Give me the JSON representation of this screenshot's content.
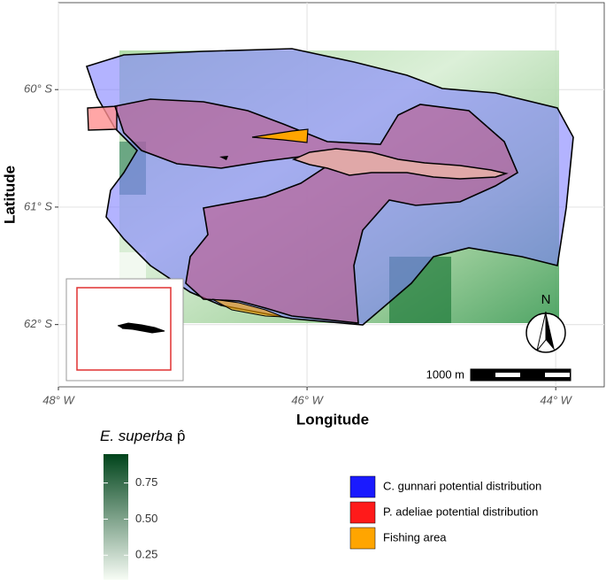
{
  "map": {
    "xaxis": {
      "title": "Longitude",
      "lim": [
        -48,
        -43.61
      ],
      "ticks": [
        {
          "value": -48,
          "label": "48° W"
        },
        {
          "value": -46,
          "label": "46° W"
        },
        {
          "value": -44,
          "label": "44° W"
        }
      ]
    },
    "yaxis": {
      "title": "Latitude",
      "lim": [
        -62.53,
        -59.26
      ],
      "ticks": [
        {
          "value": -60,
          "label": "60° S"
        },
        {
          "value": -61,
          "label": "61° S"
        },
        {
          "value": -62,
          "label": "62° S"
        }
      ]
    },
    "north_arrow": "N",
    "scale_bar": "1000 m",
    "colorbar": {
      "title_species": "E. superba",
      "title_symbol": "p̂",
      "lim": [
        0.08,
        0.95
      ],
      "ticks": [
        0.25,
        {
          "value": 0.5,
          "label": "0.50"
        },
        0.75
      ],
      "colors": [
        "#f7fcf5",
        "#00441b"
      ]
    },
    "legend": [
      {
        "label": "C. gunnari potential distribution",
        "color": "#1a1aff"
      },
      {
        "label": "P.  adeliae potential distribution",
        "color": "#ff1a1a"
      },
      {
        "label": "Fishing area",
        "color": "#ffa500"
      }
    ]
  }
}
